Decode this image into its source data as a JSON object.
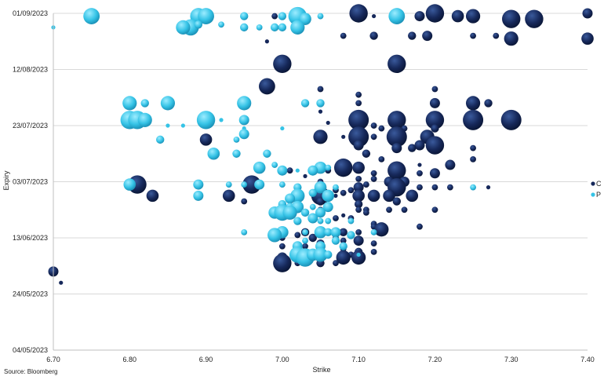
{
  "chart_data": {
    "type": "scatter",
    "subtype": "bubble",
    "xlabel": "Strike",
    "ylabel": "Expiry",
    "xlim": [
      6.7,
      7.4
    ],
    "x_ticks": [
      "6.70",
      "6.80",
      "6.90",
      "7.00",
      "7.10",
      "7.20",
      "7.30",
      "7.40"
    ],
    "y_ticks": [
      "01/09/2023",
      "12/08/2023",
      "23/07/2023",
      "03/07/2023",
      "13/06/2023",
      "24/05/2023",
      "04/05/2023"
    ],
    "ylim_days": [
      0,
      120
    ],
    "grid": "horizontal",
    "legend_position": "right",
    "source": "Source: Bloomberg",
    "series": [
      {
        "name": "C",
        "color": "#16285a",
        "points": [
          [
            6.71,
            24,
            0.2
          ],
          [
            6.7,
            28,
            0.5
          ],
          [
            6.99,
            119,
            0.3
          ],
          [
            7.02,
            119,
            0.2
          ],
          [
            7.1,
            120,
            0.9
          ],
          [
            7.12,
            119,
            0.2
          ],
          [
            7.15,
            119,
            0.6
          ],
          [
            7.18,
            119,
            0.5
          ],
          [
            7.2,
            120,
            0.9
          ],
          [
            7.23,
            119,
            0.6
          ],
          [
            7.25,
            119,
            0.7
          ],
          [
            7.3,
            118,
            0.9
          ],
          [
            7.33,
            118,
            0.9
          ],
          [
            7.4,
            120,
            0.5
          ],
          [
            6.98,
            110,
            0.2
          ],
          [
            7.08,
            112,
            0.3
          ],
          [
            7.12,
            112,
            0.4
          ],
          [
            7.17,
            112,
            0.4
          ],
          [
            7.19,
            112,
            0.5
          ],
          [
            7.25,
            112,
            0.3
          ],
          [
            7.28,
            112,
            0.3
          ],
          [
            7.3,
            111,
            0.7
          ],
          [
            7.4,
            111,
            0.6
          ],
          [
            7.0,
            102,
            0.9
          ],
          [
            7.15,
            102,
            0.9
          ],
          [
            6.98,
            94,
            0.8
          ],
          [
            7.05,
            93,
            0.3
          ],
          [
            7.1,
            91,
            0.3
          ],
          [
            7.2,
            93,
            0.3
          ],
          [
            7.1,
            88,
            0.3
          ],
          [
            7.2,
            88,
            0.5
          ],
          [
            7.25,
            88,
            0.7
          ],
          [
            7.27,
            88,
            0.4
          ],
          [
            7.1,
            82,
            1.0
          ],
          [
            7.15,
            82,
            0.9
          ],
          [
            7.2,
            82,
            0.9
          ],
          [
            7.25,
            82,
            1.0
          ],
          [
            7.3,
            82,
            1.0
          ],
          [
            7.05,
            85,
            0.2
          ],
          [
            7.06,
            81,
            0.2
          ],
          [
            7.12,
            80,
            0.3
          ],
          [
            7.13,
            79,
            0.3
          ],
          [
            7.16,
            79,
            0.3
          ],
          [
            7.2,
            79,
            0.4
          ],
          [
            7.1,
            76,
            1.0
          ],
          [
            7.15,
            76,
            1.0
          ],
          [
            7.19,
            76,
            0.7
          ],
          [
            7.05,
            76,
            0.7
          ],
          [
            6.9,
            75,
            0.6
          ],
          [
            7.12,
            76,
            0.3
          ],
          [
            7.08,
            76,
            0.2
          ],
          [
            7.1,
            73,
            0.5
          ],
          [
            7.18,
            73,
            0.5
          ],
          [
            7.2,
            73,
            0.9
          ],
          [
            7.15,
            72,
            0.5
          ],
          [
            7.17,
            72,
            0.4
          ],
          [
            7.25,
            72,
            0.3
          ],
          [
            7.11,
            70,
            0.4
          ],
          [
            7.13,
            68,
            0.3
          ],
          [
            7.22,
            66,
            0.5
          ],
          [
            7.25,
            68,
            0.3
          ],
          [
            7.18,
            66,
            0.2
          ],
          [
            7.15,
            66,
            0.3
          ],
          [
            7.08,
            65,
            0.9
          ],
          [
            7.1,
            65,
            0.6
          ],
          [
            7.15,
            64,
            0.9
          ],
          [
            7.18,
            63,
            0.3
          ],
          [
            7.2,
            63,
            0.5
          ],
          [
            7.06,
            64,
            0.3
          ],
          [
            7.01,
            64,
            0.3
          ],
          [
            7.1,
            61,
            0.3
          ],
          [
            7.12,
            61,
            0.3
          ],
          [
            7.14,
            60,
            0.5
          ],
          [
            7.16,
            60,
            0.5
          ],
          [
            7.05,
            60,
            0.3
          ],
          [
            7.03,
            62,
            0.2
          ],
          [
            7.12,
            63,
            0.3
          ],
          [
            7.11,
            59,
            0.3
          ],
          [
            6.81,
            59,
            0.9
          ],
          [
            6.96,
            59,
            0.9
          ],
          [
            7.1,
            58,
            0.5
          ],
          [
            7.15,
            58,
            0.9
          ],
          [
            7.2,
            58,
            0.3
          ],
          [
            7.18,
            58,
            0.3
          ],
          [
            7.22,
            58,
            0.3
          ],
          [
            7.27,
            58,
            0.2
          ],
          [
            7.05,
            58,
            0.4
          ],
          [
            7.09,
            57,
            0.3
          ],
          [
            7.07,
            57,
            0.3
          ],
          [
            6.83,
            55,
            0.6
          ],
          [
            6.93,
            55,
            0.6
          ],
          [
            7.05,
            55,
            0.9
          ],
          [
            7.1,
            55,
            0.6
          ],
          [
            7.12,
            55,
            0.6
          ],
          [
            7.14,
            55,
            0.6
          ],
          [
            7.17,
            55,
            0.6
          ],
          [
            7.07,
            55,
            0.2
          ],
          [
            7.08,
            56,
            0.3
          ],
          [
            6.95,
            53,
            0.3
          ],
          [
            7.05,
            53,
            0.4
          ],
          [
            7.15,
            53,
            0.4
          ],
          [
            7.1,
            52,
            0.4
          ],
          [
            7.1,
            50,
            0.3
          ],
          [
            7.11,
            50,
            0.3
          ],
          [
            7.14,
            50,
            0.3
          ],
          [
            7.16,
            50,
            0.3
          ],
          [
            7.2,
            50,
            0.3
          ],
          [
            7.05,
            50,
            0.3
          ],
          [
            7.11,
            49,
            0.3
          ],
          [
            7.04,
            47,
            0.2
          ],
          [
            7.07,
            47,
            0.3
          ],
          [
            7.08,
            48,
            0.2
          ],
          [
            7.09,
            47,
            0.3
          ],
          [
            7.12,
            45,
            0.3
          ],
          [
            7.12,
            44,
            0.3
          ],
          [
            7.18,
            44,
            0.3
          ],
          [
            7.1,
            42,
            0.3
          ],
          [
            7.05,
            43,
            0.3
          ],
          [
            7.13,
            43,
            0.7
          ],
          [
            7.03,
            42,
            0.4
          ],
          [
            7.08,
            42,
            0.4
          ],
          [
            7.02,
            41,
            0.3
          ],
          [
            7.0,
            40,
            0.3
          ],
          [
            7.04,
            40,
            0.4
          ],
          [
            7.07,
            40,
            0.3
          ],
          [
            7.1,
            39,
            0.5
          ],
          [
            7.05,
            38,
            0.4
          ],
          [
            7.08,
            39,
            0.3
          ],
          [
            7.12,
            38,
            0.3
          ],
          [
            7.0,
            37,
            0.3
          ],
          [
            7.03,
            37,
            0.3
          ],
          [
            7.05,
            36,
            0.3
          ],
          [
            7.08,
            36,
            0.3
          ],
          [
            7.1,
            35,
            0.4
          ],
          [
            7.12,
            35,
            0.3
          ],
          [
            7.09,
            34,
            0.3
          ],
          [
            7.0,
            33,
            0.5
          ],
          [
            7.08,
            33,
            0.7
          ],
          [
            7.1,
            33,
            0.7
          ],
          [
            7.02,
            31,
            0.3
          ],
          [
            7.07,
            31,
            0.3
          ],
          [
            7.0,
            31,
            0.9
          ],
          [
            7.05,
            31,
            0.4
          ]
        ]
      },
      {
        "name": "P",
        "color": "#35c3e6",
        "points": [
          [
            6.7,
            115,
            0.2
          ],
          [
            6.75,
            119,
            0.8
          ],
          [
            6.89,
            119,
            0.8
          ],
          [
            6.9,
            119,
            0.8
          ],
          [
            6.95,
            119,
            0.4
          ],
          [
            7.0,
            119,
            0.4
          ],
          [
            7.02,
            119,
            0.9
          ],
          [
            7.05,
            119,
            0.3
          ],
          [
            7.15,
            119,
            0.8
          ],
          [
            7.03,
            118,
            0.6
          ],
          [
            6.88,
            115,
            0.8
          ],
          [
            6.87,
            115,
            0.7
          ],
          [
            6.89,
            116,
            0.4
          ],
          [
            6.92,
            116,
            0.3
          ],
          [
            6.97,
            115,
            0.3
          ],
          [
            7.0,
            115,
            0.4
          ],
          [
            7.02,
            115,
            0.7
          ],
          [
            6.99,
            115,
            0.4
          ],
          [
            6.95,
            115,
            0.4
          ],
          [
            6.8,
            88,
            0.7
          ],
          [
            6.82,
            88,
            0.4
          ],
          [
            6.85,
            88,
            0.7
          ],
          [
            6.95,
            88,
            0.7
          ],
          [
            7.03,
            88,
            0.4
          ],
          [
            7.05,
            88,
            0.4
          ],
          [
            6.8,
            82,
            0.9
          ],
          [
            6.81,
            82,
            0.9
          ],
          [
            6.82,
            82,
            0.7
          ],
          [
            6.9,
            82,
            0.9
          ],
          [
            6.92,
            82,
            0.2
          ],
          [
            6.95,
            82,
            0.5
          ],
          [
            6.85,
            80,
            0.2
          ],
          [
            6.87,
            80,
            0.2
          ],
          [
            6.95,
            79,
            0.2
          ],
          [
            7.0,
            79,
            0.2
          ],
          [
            6.84,
            75,
            0.4
          ],
          [
            6.95,
            77,
            0.5
          ],
          [
            6.94,
            75,
            0.3
          ],
          [
            6.91,
            70,
            0.6
          ],
          [
            6.94,
            70,
            0.4
          ],
          [
            6.98,
            70,
            0.4
          ],
          [
            6.97,
            65,
            0.6
          ],
          [
            6.99,
            66,
            0.3
          ],
          [
            7.0,
            64,
            0.5
          ],
          [
            7.05,
            65,
            0.6
          ],
          [
            7.04,
            64,
            0.5
          ],
          [
            7.06,
            65,
            0.3
          ],
          [
            7.02,
            64,
            0.2
          ],
          [
            6.8,
            59,
            0.6
          ],
          [
            6.89,
            59,
            0.5
          ],
          [
            6.93,
            59,
            0.3
          ],
          [
            6.95,
            59,
            0.3
          ],
          [
            6.97,
            59,
            0.5
          ],
          [
            7.0,
            59,
            0.3
          ],
          [
            7.02,
            58,
            0.4
          ],
          [
            7.05,
            58,
            0.6
          ],
          [
            7.07,
            58,
            0.3
          ],
          [
            7.25,
            58,
            0.3
          ],
          [
            6.89,
            55,
            0.5
          ],
          [
            7.02,
            55,
            0.7
          ],
          [
            7.04,
            56,
            0.4
          ],
          [
            7.06,
            55,
            0.6
          ],
          [
            7.01,
            54,
            0.5
          ],
          [
            7.0,
            52,
            0.4
          ],
          [
            7.01,
            51,
            0.4
          ],
          [
            7.02,
            51,
            0.6
          ],
          [
            7.04,
            51,
            0.3
          ],
          [
            7.06,
            51,
            0.5
          ],
          [
            6.99,
            49,
            0.6
          ],
          [
            7.0,
            49,
            0.8
          ],
          [
            7.01,
            49,
            0.7
          ],
          [
            7.03,
            49,
            0.4
          ],
          [
            7.04,
            47,
            0.5
          ],
          [
            7.05,
            49,
            0.5
          ],
          [
            7.02,
            46,
            0.4
          ],
          [
            7.05,
            46,
            0.3
          ],
          [
            7.06,
            46,
            0.3
          ],
          [
            7.09,
            46,
            0.3
          ],
          [
            6.95,
            42,
            0.3
          ],
          [
            7.0,
            42,
            0.6
          ],
          [
            7.03,
            42,
            0.3
          ],
          [
            7.05,
            42,
            0.6
          ],
          [
            7.06,
            42,
            0.4
          ],
          [
            7.07,
            42,
            0.5
          ],
          [
            7.09,
            41,
            0.4
          ],
          [
            7.12,
            42,
            0.3
          ],
          [
            6.99,
            41,
            0.7
          ],
          [
            7.03,
            39,
            0.3
          ],
          [
            7.07,
            39,
            0.4
          ],
          [
            7.02,
            37,
            0.5
          ],
          [
            7.05,
            37,
            0.5
          ],
          [
            7.08,
            37,
            0.4
          ],
          [
            7.02,
            34,
            0.8
          ],
          [
            7.03,
            33,
            0.9
          ],
          [
            7.04,
            34,
            0.6
          ],
          [
            7.05,
            34,
            0.7
          ],
          [
            7.06,
            34,
            0.4
          ],
          [
            7.1,
            34,
            0.2
          ]
        ]
      }
    ]
  }
}
